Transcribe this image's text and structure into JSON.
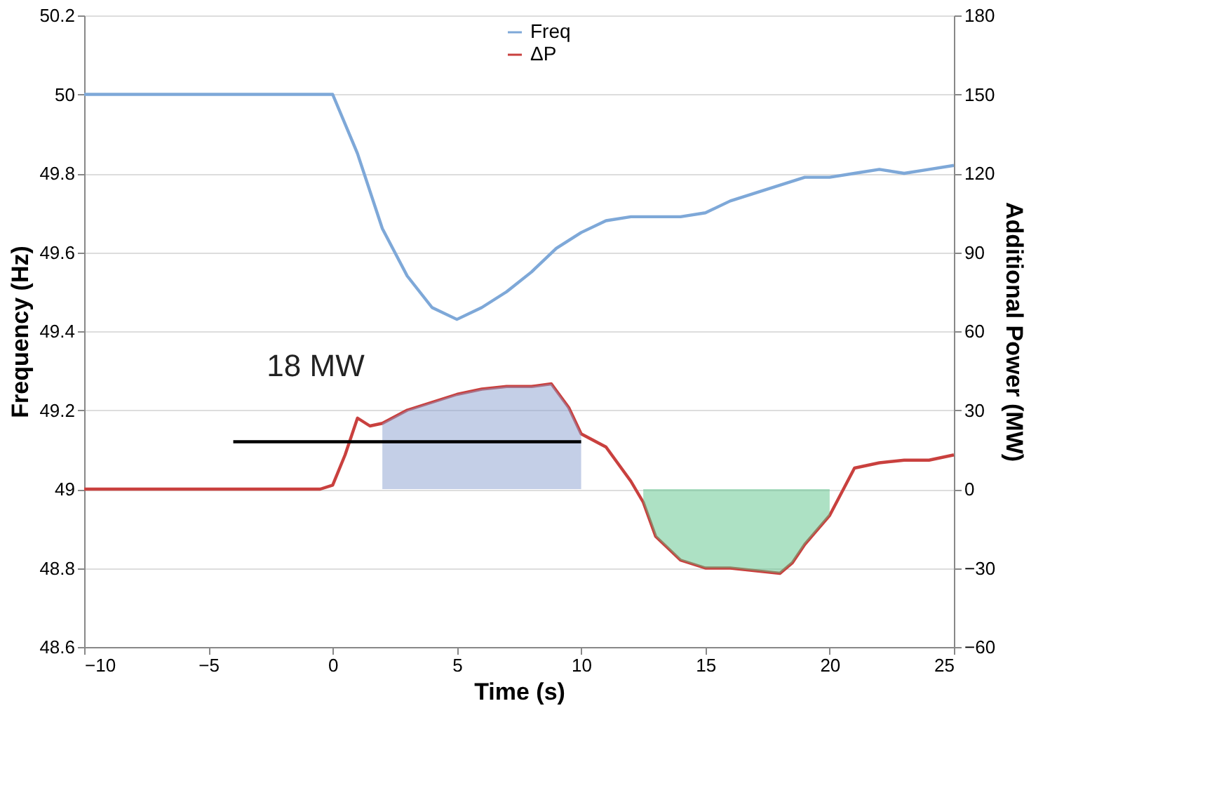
{
  "chart_data": {
    "type": "line",
    "xlabel": "Time (s)",
    "ylabel": "Frequency (Hz)",
    "y2label": "Additional Power (MW)",
    "xlim": [
      -10,
      25
    ],
    "xticks": [
      -10,
      -5,
      0,
      5,
      10,
      15,
      20,
      25
    ],
    "ylim": [
      48.6,
      50.2
    ],
    "yticks": [
      48.6,
      48.8,
      49,
      49.2,
      49.4,
      49.6,
      49.8,
      50,
      50.2
    ],
    "y2lim": [
      -60,
      180
    ],
    "y2ticks": [
      -60,
      -30,
      0,
      30,
      60,
      90,
      120,
      150,
      180
    ],
    "grid": "y",
    "legend": "top",
    "line_style": "solid",
    "marker": "none",
    "series": [
      {
        "name": "Freq",
        "color": "#7ea8d8",
        "x": [
          -10,
          -5,
          -1,
          0,
          1,
          2,
          3,
          4,
          5,
          6,
          7,
          8,
          9,
          10,
          11,
          12,
          13,
          14,
          15,
          16,
          17,
          18,
          19,
          20,
          21,
          22,
          23,
          24,
          25
        ],
        "values": [
          50,
          50,
          50,
          50.0,
          49.85,
          49.66,
          49.54,
          49.46,
          49.43,
          49.46,
          49.5,
          49.55,
          49.61,
          49.65,
          49.68,
          49.69,
          49.69,
          49.69,
          49.7,
          49.73,
          49.75,
          49.77,
          49.79,
          49.79,
          49.8,
          49.81,
          49.8,
          49.81,
          49.82
        ]
      },
      {
        "name": "ΔP",
        "color": "#c9403e",
        "axis": "y2",
        "x": [
          -10,
          -5,
          -0.5,
          0,
          0.5,
          1,
          1.5,
          2,
          3,
          4,
          5,
          6,
          7,
          8,
          8.8,
          9.5,
          10,
          11,
          12,
          12.5,
          13,
          14,
          15,
          16,
          17,
          18,
          18.5,
          19,
          20,
          21,
          22,
          23,
          24,
          25
        ],
        "values": [
          0,
          0,
          0,
          1.5,
          13,
          27,
          24,
          25,
          30,
          33,
          36,
          38,
          39,
          39,
          40,
          31,
          21,
          16,
          3,
          -5,
          -18,
          -27,
          -30,
          -30,
          -31,
          -32,
          -28,
          -21,
          -10,
          8,
          10,
          11,
          11,
          13
        ]
      },
      {
        "type": "area",
        "color": "#8a9fd0",
        "axis": "y2",
        "x": [
          2,
          3,
          4,
          5,
          6,
          7,
          8,
          8.8,
          9.5,
          10
        ],
        "values": [
          25,
          30,
          33,
          36,
          38,
          39,
          39,
          40,
          31,
          21
        ]
      },
      {
        "type": "area",
        "color": "#5cc48a",
        "axis": "y2",
        "x": [
          12.5,
          13,
          14,
          15,
          16,
          17,
          18,
          18.5,
          19,
          20
        ],
        "values": [
          -5,
          -18,
          -27,
          -30,
          -30,
          -31,
          -32,
          -28,
          -21,
          -10
        ]
      },
      {
        "color": "#000000",
        "axis": "y2",
        "x": [
          -4,
          10
        ],
        "values": [
          18,
          18
        ]
      }
    ],
    "annotations": [
      "18 MW"
    ]
  }
}
